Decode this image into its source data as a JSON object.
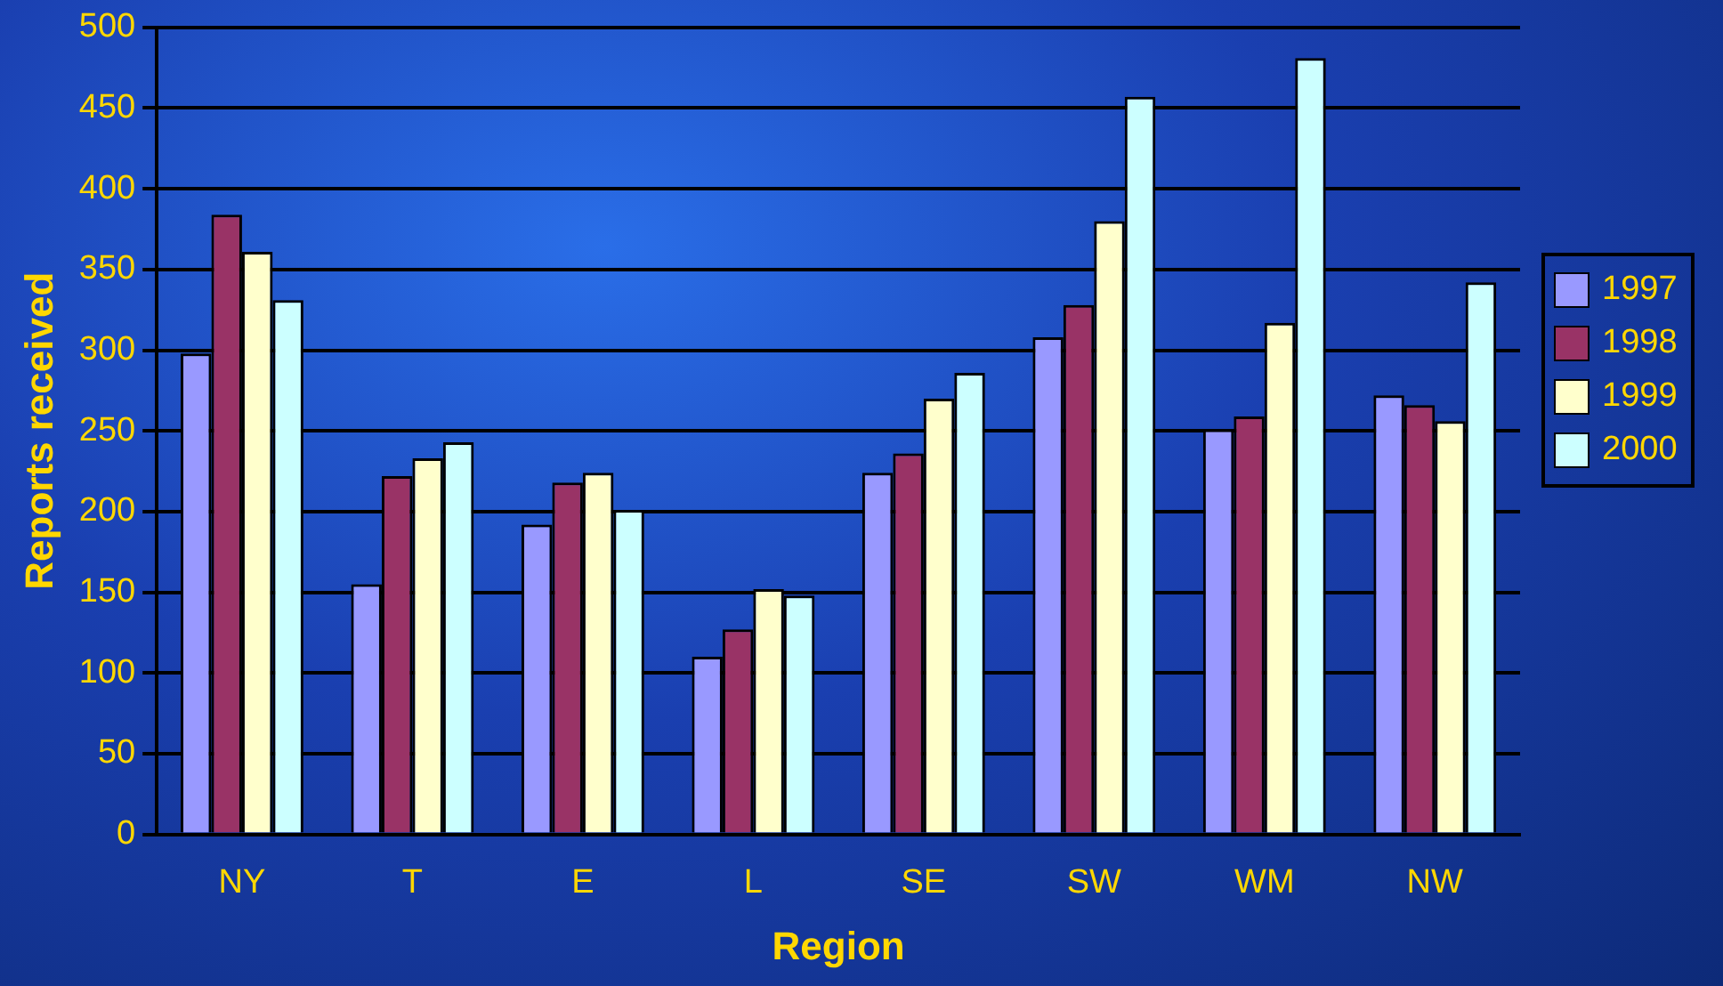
{
  "chart_data": {
    "type": "bar",
    "xlabel": "Region",
    "ylabel": "Reports received",
    "categories": [
      "NY",
      "T",
      "E",
      "L",
      "SE",
      "SW",
      "WM",
      "NW"
    ],
    "series": [
      {
        "name": "1997",
        "color": "#9999ff",
        "values": [
          298,
          155,
          192,
          110,
          224,
          308,
          251,
          272
        ]
      },
      {
        "name": "1998",
        "color": "#993366",
        "values": [
          384,
          222,
          218,
          127,
          236,
          328,
          259,
          266
        ]
      },
      {
        "name": "1999",
        "color": "#ffffcc",
        "values": [
          361,
          233,
          224,
          152,
          270,
          380,
          317,
          256
        ]
      },
      {
        "name": "2000",
        "color": "#ccffff",
        "values": [
          331,
          243,
          201,
          148,
          286,
          457,
          481,
          342
        ]
      }
    ],
    "ylim": [
      0,
      500
    ],
    "yticks": [
      0,
      50,
      100,
      150,
      200,
      250,
      300,
      350,
      400,
      450,
      500
    ],
    "grid": "y",
    "legend": "right"
  }
}
